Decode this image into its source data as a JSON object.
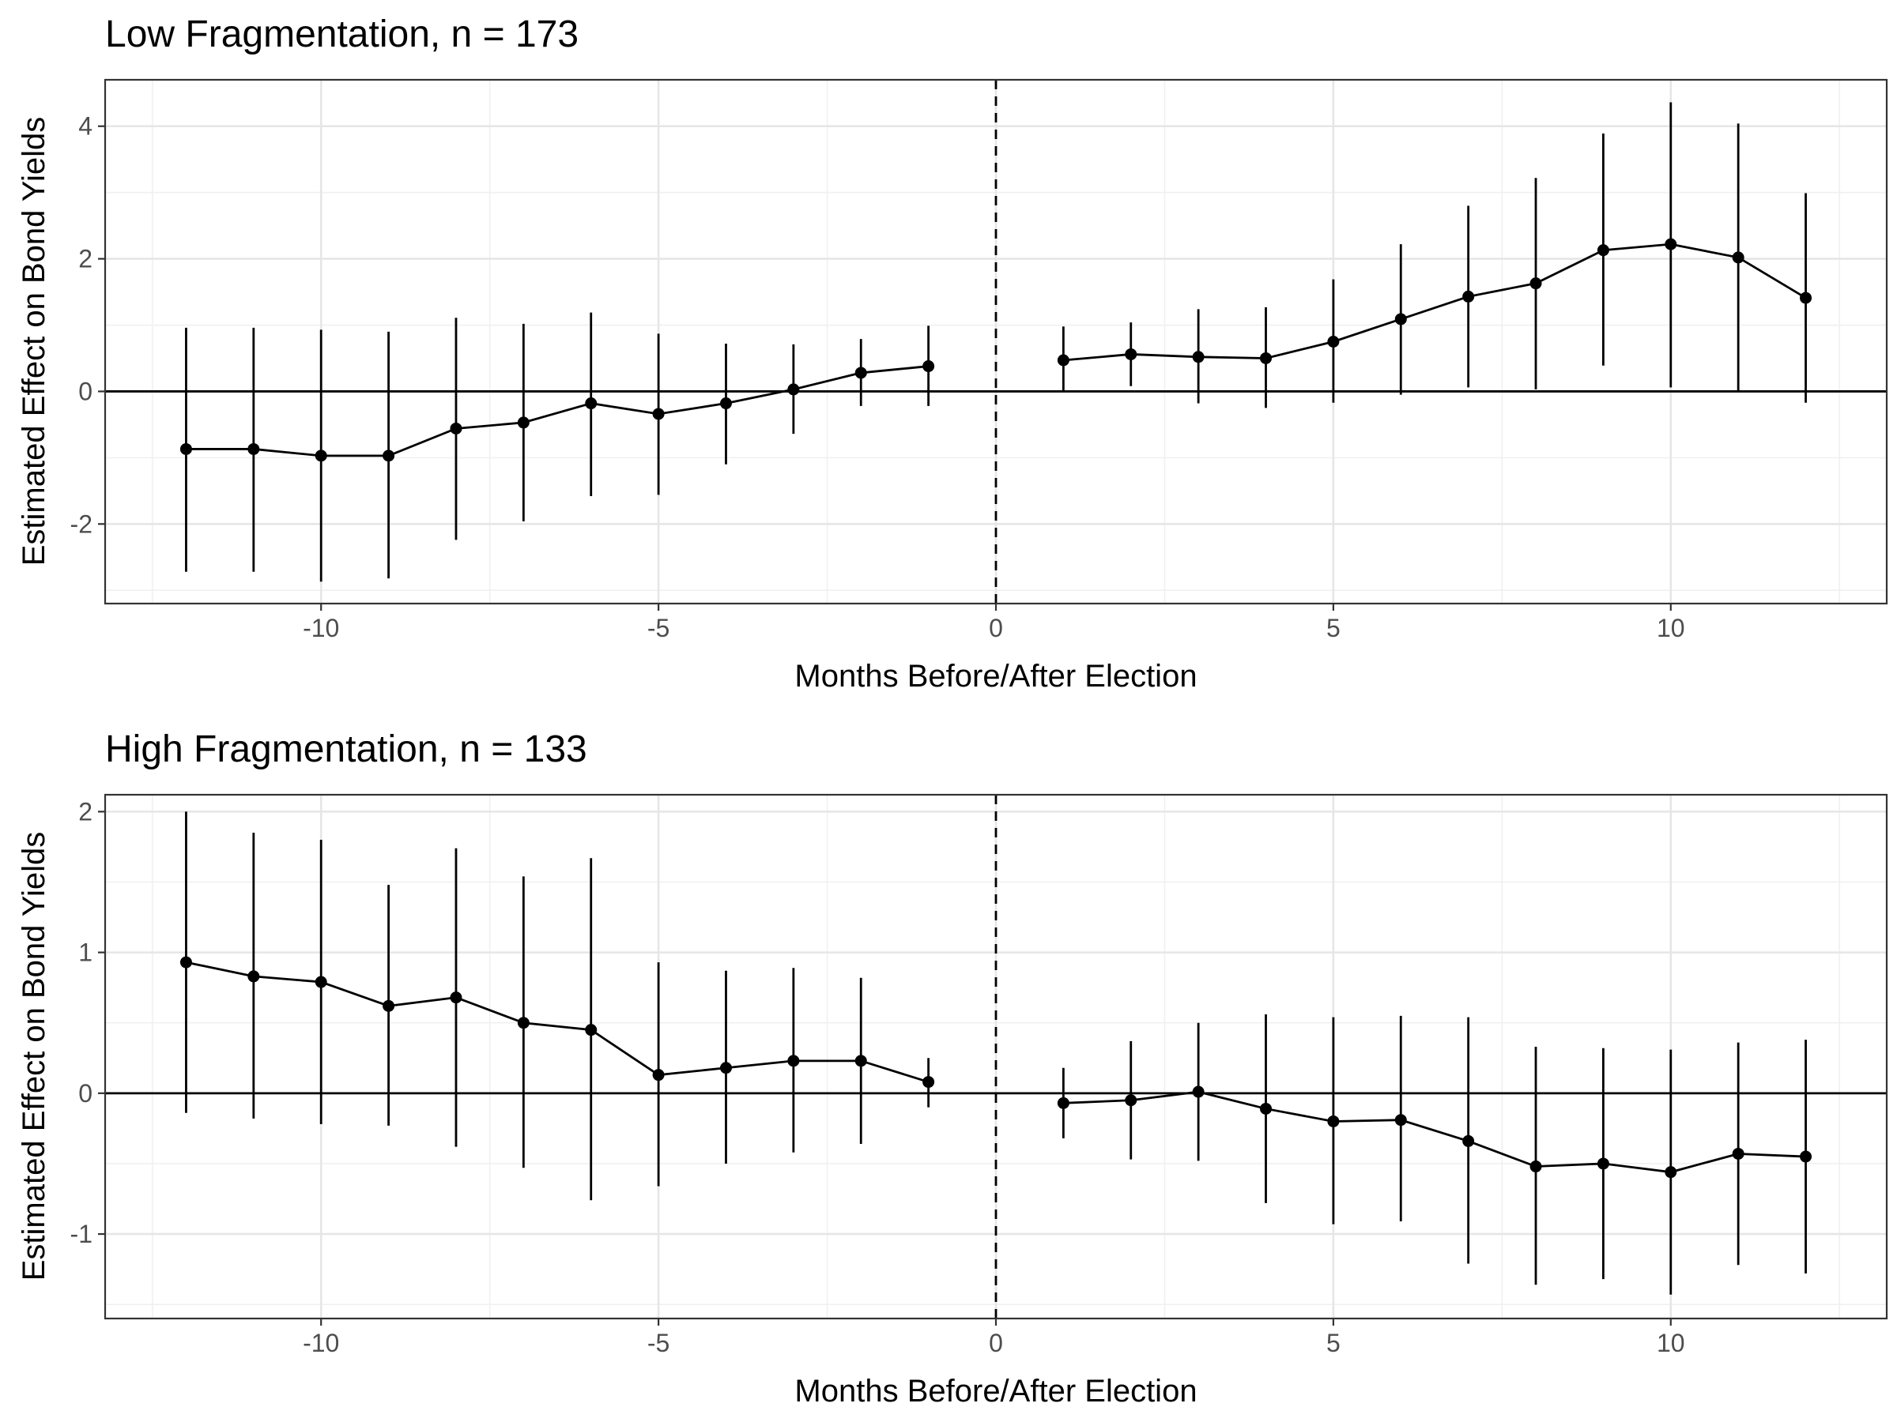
{
  "chart_data": [
    {
      "type": "line",
      "title": "Low Fragmentation, n = 173",
      "xlabel": "Months Before/After Election",
      "ylabel": "Estimated Effect on Bond Yields",
      "xlim": [
        -13.2,
        13.2
      ],
      "ylim": [
        -3.2,
        4.7
      ],
      "xticks": [
        -10,
        -5,
        0,
        5,
        10
      ],
      "xtick_labels": [
        "-10",
        "-5",
        "0",
        "5",
        "10"
      ],
      "yticks": [
        -2,
        0,
        2,
        4
      ],
      "ytick_labels": [
        "-2",
        "0",
        "2",
        "4"
      ],
      "grid": true,
      "reference_lines": {
        "horizontal_solid_at": 0,
        "vertical_dashed_at": 0
      },
      "series": [
        {
          "segment": "before",
          "x": [
            -12,
            -11,
            -10,
            -9,
            -8,
            -7,
            -6,
            -5,
            -4,
            -3,
            -2,
            -1
          ],
          "y": [
            -0.87,
            -0.87,
            -0.97,
            -0.97,
            -0.56,
            -0.47,
            -0.18,
            -0.34,
            -0.18,
            0.03,
            0.28,
            0.38
          ],
          "lower": [
            -2.72,
            -2.72,
            -2.87,
            -2.82,
            -2.24,
            -1.96,
            -1.58,
            -1.56,
            -1.1,
            -0.64,
            -0.22,
            -0.22
          ],
          "upper": [
            0.96,
            0.96,
            0.93,
            0.9,
            1.11,
            1.02,
            1.19,
            0.87,
            0.72,
            0.71,
            0.79,
            0.99
          ]
        },
        {
          "segment": "after",
          "x": [
            1,
            2,
            3,
            4,
            5,
            6,
            7,
            8,
            9,
            10,
            11,
            12
          ],
          "y": [
            0.47,
            0.56,
            0.52,
            0.5,
            0.75,
            1.09,
            1.43,
            1.63,
            2.13,
            2.22,
            2.02,
            1.41
          ],
          "lower": [
            0.0,
            0.08,
            -0.18,
            -0.25,
            -0.17,
            -0.05,
            0.06,
            0.03,
            0.39,
            0.06,
            0.0,
            -0.17
          ],
          "upper": [
            0.98,
            1.04,
            1.24,
            1.27,
            1.69,
            2.22,
            2.8,
            3.22,
            3.89,
            4.36,
            4.04,
            2.99
          ]
        }
      ]
    },
    {
      "type": "line",
      "title": "High Fragmentation, n = 133",
      "xlabel": "Months Before/After Election",
      "ylabel": "Estimated Effect on Bond Yields",
      "xlim": [
        -13.2,
        13.2
      ],
      "ylim": [
        -1.6,
        2.12
      ],
      "xticks": [
        -10,
        -5,
        0,
        5,
        10
      ],
      "xtick_labels": [
        "-10",
        "-5",
        "0",
        "5",
        "10"
      ],
      "yticks": [
        -1,
        0,
        1,
        2
      ],
      "ytick_labels": [
        "-1",
        "0",
        "1",
        "2"
      ],
      "grid": true,
      "reference_lines": {
        "horizontal_solid_at": 0,
        "vertical_dashed_at": 0
      },
      "series": [
        {
          "segment": "before",
          "x": [
            -12,
            -11,
            -10,
            -9,
            -8,
            -7,
            -6,
            -5,
            -4,
            -3,
            -2,
            -1
          ],
          "y": [
            0.93,
            0.83,
            0.79,
            0.62,
            0.68,
            0.5,
            0.45,
            0.13,
            0.18,
            0.23,
            0.23,
            0.08
          ],
          "lower": [
            -0.14,
            -0.18,
            -0.22,
            -0.23,
            -0.38,
            -0.53,
            -0.76,
            -0.66,
            -0.5,
            -0.42,
            -0.36,
            -0.1
          ],
          "upper": [
            2.0,
            1.85,
            1.8,
            1.48,
            1.74,
            1.54,
            1.67,
            0.93,
            0.87,
            0.89,
            0.82,
            0.25
          ]
        },
        {
          "segment": "after",
          "x": [
            1,
            2,
            3,
            4,
            5,
            6,
            7,
            8,
            9,
            10,
            11,
            12
          ],
          "y": [
            -0.07,
            -0.05,
            0.01,
            -0.11,
            -0.2,
            -0.19,
            -0.34,
            -0.52,
            -0.5,
            -0.56,
            -0.43,
            -0.45
          ],
          "lower": [
            -0.32,
            -0.47,
            -0.48,
            -0.78,
            -0.93,
            -0.91,
            -1.21,
            -1.36,
            -1.32,
            -1.43,
            -1.22,
            -1.28
          ],
          "upper": [
            0.18,
            0.37,
            0.5,
            0.56,
            0.54,
            0.55,
            0.54,
            0.33,
            0.32,
            0.31,
            0.36,
            0.38
          ]
        }
      ]
    }
  ]
}
